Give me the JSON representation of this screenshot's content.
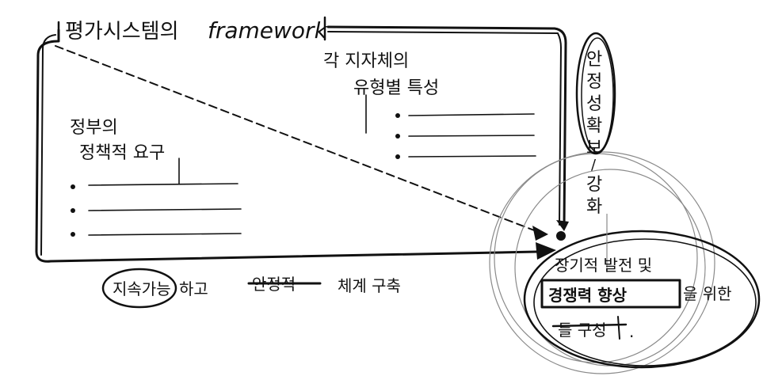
{
  "title_ko": "평가시스템의",
  "title_en": "framework",
  "left_box": {
    "heading_line1": "정부의",
    "heading_line2": "정책적 요구",
    "bullets": [
      "",
      "",
      ""
    ]
  },
  "right_box": {
    "heading_line1": "각 지자체의",
    "heading_line2": "유형별 특성",
    "bullets": [
      "",
      "",
      ""
    ]
  },
  "stability": [
    "안",
    "정",
    "성",
    "확",
    "보",
    "/",
    "강",
    "화"
  ],
  "bottom_note": {
    "circled": "지속가능",
    "after_circled": "하고",
    "struck": "안정적",
    "rest": "체계 구축"
  },
  "target": {
    "line1": "장기적 발전 및",
    "boxed": "경쟁력 향상",
    "after_boxed": "을 위한",
    "struck": "틀 구성",
    "line3_end": "."
  }
}
